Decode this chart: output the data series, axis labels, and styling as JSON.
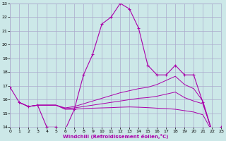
{
  "xlabel": "Windchill (Refroidissement éolien,°C)",
  "xlim": [
    0,
    23
  ],
  "ylim": [
    14,
    23
  ],
  "yticks": [
    14,
    15,
    16,
    17,
    18,
    19,
    20,
    21,
    22,
    23
  ],
  "xticks": [
    0,
    1,
    2,
    3,
    4,
    5,
    6,
    7,
    8,
    9,
    10,
    11,
    12,
    13,
    14,
    15,
    16,
    17,
    18,
    19,
    20,
    21,
    22,
    23
  ],
  "bg_color": "#cce8e8",
  "grid_color": "#aaaacc",
  "line_color": "#aa00aa",
  "curve1_x": [
    0,
    1,
    2,
    3,
    4,
    5,
    6,
    7,
    8,
    9,
    10,
    11,
    12,
    13,
    14,
    15,
    16,
    17,
    18,
    19,
    20,
    21,
    22,
    23
  ],
  "curve1_y": [
    16.9,
    15.8,
    15.5,
    15.6,
    14.0,
    14.0,
    13.8,
    15.3,
    17.8,
    19.3,
    21.5,
    22.0,
    23.0,
    22.6,
    21.2,
    18.5,
    17.8,
    17.8,
    18.5,
    17.8,
    17.8,
    15.8,
    13.7,
    14.0
  ],
  "curve2_x": [
    1,
    2,
    3,
    4,
    5,
    6,
    7,
    8,
    9,
    10,
    11,
    12,
    13,
    14,
    15,
    16,
    17,
    18,
    19,
    20,
    21,
    22,
    23
  ],
  "curve2_y": [
    15.8,
    15.5,
    15.6,
    15.6,
    15.6,
    15.4,
    15.5,
    15.7,
    15.9,
    16.1,
    16.3,
    16.5,
    16.65,
    16.8,
    16.9,
    17.1,
    17.4,
    17.7,
    17.1,
    16.8,
    15.9,
    13.7,
    14.0
  ],
  "curve3_x": [
    1,
    2,
    3,
    4,
    5,
    6,
    7,
    8,
    9,
    10,
    11,
    12,
    13,
    14,
    15,
    16,
    17,
    18,
    19,
    20,
    21,
    22,
    23
  ],
  "curve3_y": [
    15.8,
    15.5,
    15.6,
    15.6,
    15.6,
    15.35,
    15.4,
    15.5,
    15.6,
    15.7,
    15.8,
    15.9,
    16.0,
    16.1,
    16.15,
    16.25,
    16.4,
    16.55,
    16.15,
    15.9,
    15.7,
    13.7,
    14.0
  ],
  "curve4_x": [
    1,
    2,
    3,
    4,
    5,
    6,
    7,
    8,
    9,
    10,
    11,
    12,
    13,
    14,
    15,
    16,
    17,
    18,
    19,
    20,
    21,
    22,
    23
  ],
  "curve4_y": [
    15.8,
    15.5,
    15.6,
    15.6,
    15.6,
    15.3,
    15.3,
    15.35,
    15.38,
    15.4,
    15.42,
    15.45,
    15.47,
    15.45,
    15.42,
    15.38,
    15.35,
    15.3,
    15.2,
    15.1,
    14.9,
    13.7,
    14.0
  ]
}
